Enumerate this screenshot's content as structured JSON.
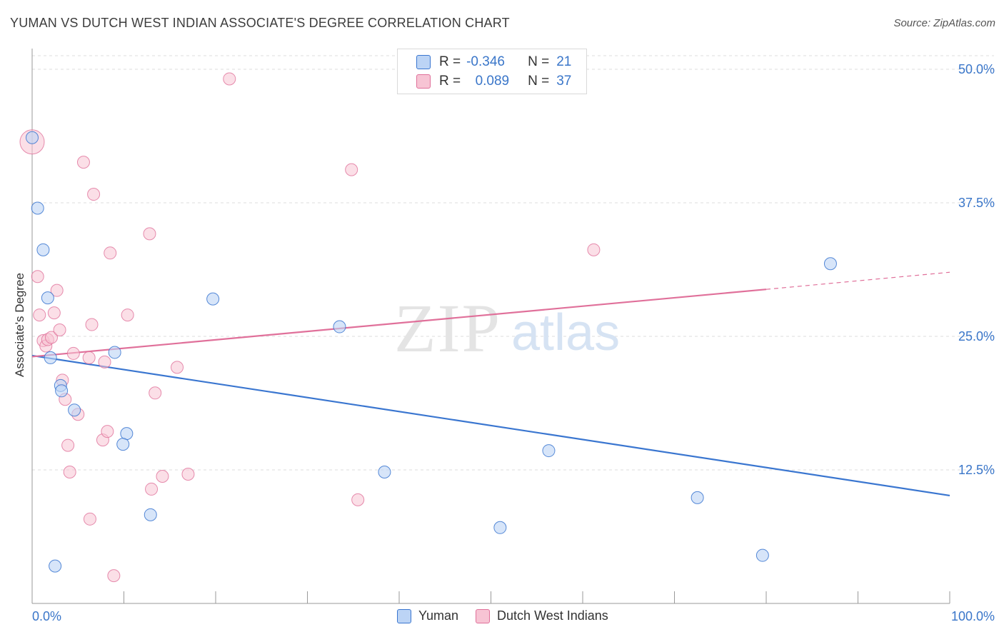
{
  "header": {
    "title": "YUMAN VS DUTCH WEST INDIAN ASSOCIATE'S DEGREE CORRELATION CHART",
    "source": "Source: ZipAtlas.com"
  },
  "legend": {
    "rows": [
      {
        "r_label": "R =",
        "r_value": "-0.346",
        "n_label": "N =",
        "n_value": "21"
      },
      {
        "r_label": "R =",
        "r_value": "0.089",
        "n_label": "N =",
        "n_value": "37"
      }
    ]
  },
  "watermark": {
    "zip": "ZIP",
    "atlas": "atlas"
  },
  "colors": {
    "yuman": "#3a76d0",
    "yuman_fill": "#bcd4f5",
    "dutch": "#e0709a",
    "dutch_fill": "#f7c4d4",
    "tick_label": "#3a76c9",
    "grid": "#dcdcdc"
  },
  "chart_data": {
    "type": "scatter",
    "title": "YUMAN VS DUTCH WEST INDIAN ASSOCIATE'S DEGREE CORRELATION CHART",
    "ylabel": "Associate's Degree",
    "xlabel": "",
    "xlim": [
      0,
      100
    ],
    "ylim": [
      0,
      50.0
    ],
    "x_tick_labels": [
      "0.0%",
      "100.0%"
    ],
    "y_ticks": [
      12.5,
      25.0,
      37.5,
      50.0
    ],
    "y_tick_labels": [
      "12.5%",
      "25.0%",
      "37.5%",
      "50.0%"
    ],
    "grid": true,
    "legend_position": "bottom",
    "series": [
      {
        "name": "Yuman",
        "r": -0.346,
        "n": 21,
        "points": [
          [
            0.0,
            43.6
          ],
          [
            0.6,
            37.0
          ],
          [
            1.2,
            33.1
          ],
          [
            1.7,
            28.6
          ],
          [
            2.0,
            23.0
          ],
          [
            3.1,
            20.4
          ],
          [
            3.2,
            19.9
          ],
          [
            4.6,
            18.1
          ],
          [
            9.0,
            23.5
          ],
          [
            10.3,
            15.9
          ],
          [
            9.9,
            14.9
          ],
          [
            12.9,
            8.3
          ],
          [
            2.5,
            3.5
          ],
          [
            19.7,
            28.5
          ],
          [
            33.5,
            25.9
          ],
          [
            38.4,
            12.3
          ],
          [
            51.0,
            7.1
          ],
          [
            56.3,
            14.3
          ],
          [
            72.5,
            9.9
          ],
          [
            79.6,
            4.5
          ],
          [
            87.0,
            31.8
          ]
        ],
        "trend": {
          "x0": 0,
          "y0": 23.2,
          "x1": 100,
          "y1": 10.1
        }
      },
      {
        "name": "Dutch West Indians",
        "r": 0.089,
        "n": 37,
        "points": [
          [
            0.0,
            43.2
          ],
          [
            0.6,
            30.6
          ],
          [
            0.8,
            27.0
          ],
          [
            1.2,
            24.6
          ],
          [
            1.5,
            24.1
          ],
          [
            1.7,
            24.7
          ],
          [
            2.1,
            24.9
          ],
          [
            2.4,
            27.2
          ],
          [
            2.7,
            29.3
          ],
          [
            3.0,
            25.6
          ],
          [
            3.3,
            20.9
          ],
          [
            3.6,
            19.1
          ],
          [
            3.9,
            14.8
          ],
          [
            4.1,
            12.3
          ],
          [
            4.5,
            23.4
          ],
          [
            5.0,
            17.7
          ],
          [
            5.6,
            41.3
          ],
          [
            6.2,
            23.0
          ],
          [
            6.3,
            7.9
          ],
          [
            6.5,
            26.1
          ],
          [
            6.7,
            38.3
          ],
          [
            7.7,
            15.3
          ],
          [
            7.9,
            22.6
          ],
          [
            8.2,
            16.1
          ],
          [
            8.5,
            32.8
          ],
          [
            8.9,
            2.6
          ],
          [
            10.4,
            27.0
          ],
          [
            12.8,
            34.6
          ],
          [
            13.0,
            10.7
          ],
          [
            13.4,
            19.7
          ],
          [
            14.2,
            11.9
          ],
          [
            15.8,
            22.1
          ],
          [
            17.0,
            12.1
          ],
          [
            21.5,
            49.1
          ],
          [
            34.8,
            40.6
          ],
          [
            35.5,
            9.7
          ],
          [
            61.2,
            33.1
          ]
        ],
        "trend": {
          "x0": 0,
          "y0": 23.1,
          "x1": 80,
          "y1": 29.4
        },
        "trend_dashed": {
          "x0": 80,
          "y0": 29.4,
          "x1": 100,
          "y1": 31.0
        }
      }
    ]
  }
}
